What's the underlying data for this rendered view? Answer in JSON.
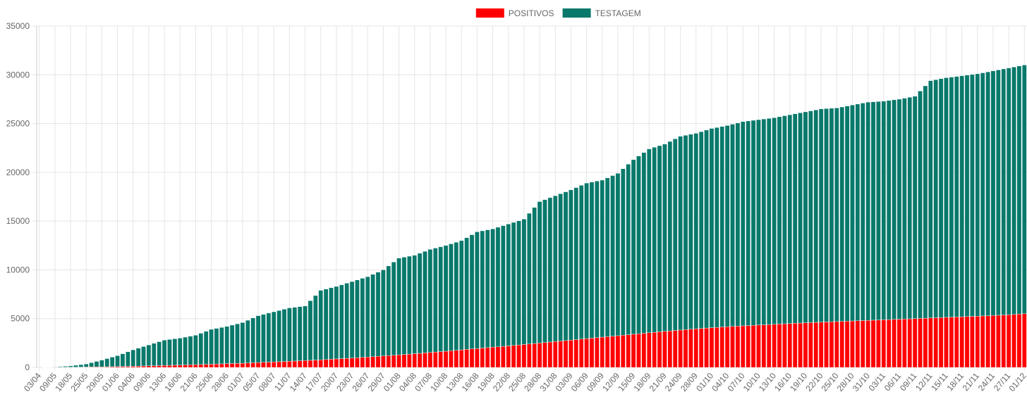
{
  "chart_data": {
    "type": "bar",
    "stacked": true,
    "grid": true,
    "legend": "top",
    "categories": [
      "03/04",
      null,
      null,
      "09/05",
      null,
      null,
      "18/05",
      null,
      null,
      "25/05",
      null,
      null,
      "29/05",
      null,
      null,
      "01/06",
      null,
      null,
      "04/06",
      null,
      null,
      "09/06",
      null,
      null,
      "13/06",
      null,
      null,
      "16/06",
      null,
      null,
      "21/06",
      null,
      null,
      "25/06",
      null,
      null,
      "28/06",
      null,
      null,
      "01/07",
      null,
      null,
      "05/07",
      null,
      null,
      "08/07",
      null,
      null,
      "11/07",
      null,
      null,
      "14/07",
      null,
      null,
      "17/07",
      null,
      null,
      "20/07",
      null,
      null,
      "23/07",
      null,
      null,
      "26/07",
      null,
      null,
      "29/07",
      null,
      null,
      "01/08",
      null,
      null,
      "04/08",
      null,
      null,
      "07/08",
      null,
      null,
      "10/08",
      null,
      null,
      "13/08",
      null,
      null,
      "16/08",
      null,
      null,
      "19/08",
      null,
      null,
      "22/08",
      null,
      null,
      "25/08",
      null,
      null,
      "28/08",
      null,
      null,
      "31/08",
      null,
      null,
      "03/09",
      null,
      null,
      "06/09",
      null,
      null,
      "09/09",
      null,
      null,
      "12/09",
      null,
      null,
      "15/09",
      null,
      null,
      "18/09",
      null,
      null,
      "21/09",
      null,
      null,
      "24/09",
      null,
      null,
      "28/09",
      null,
      null,
      "01/10",
      null,
      null,
      "04/10",
      null,
      null,
      "07/10",
      null,
      null,
      "10/10",
      null,
      null,
      "13/10",
      null,
      null,
      "16/10",
      null,
      null,
      "19/10",
      null,
      null,
      "22/10",
      null,
      null,
      "25/10",
      null,
      null,
      "28/10",
      null,
      null,
      "31/10",
      null,
      null,
      "03/11",
      null,
      null,
      "06/11",
      null,
      null,
      "09/11",
      null,
      null,
      "12/11",
      null,
      null,
      "15/11",
      null,
      null,
      "18/11",
      null,
      null,
      "21/11",
      null,
      null,
      "24/11",
      null,
      null,
      "27/11",
      null,
      null,
      "01/12"
    ],
    "series": [
      {
        "name": "POSITIVOS",
        "color": "#ff0000",
        "values": [
          0,
          3,
          7,
          10,
          13,
          17,
          20,
          27,
          33,
          40,
          47,
          53,
          60,
          70,
          80,
          90,
          100,
          110,
          120,
          133,
          147,
          160,
          173,
          187,
          200,
          213,
          227,
          240,
          253,
          267,
          280,
          297,
          313,
          330,
          347,
          363,
          380,
          397,
          413,
          430,
          453,
          477,
          500,
          520,
          540,
          560,
          583,
          607,
          630,
          653,
          677,
          700,
          727,
          753,
          780,
          810,
          840,
          870,
          900,
          930,
          960,
          993,
          1027,
          1060,
          1097,
          1133,
          1170,
          1210,
          1250,
          1290,
          1327,
          1363,
          1400,
          1443,
          1487,
          1530,
          1573,
          1617,
          1660,
          1707,
          1753,
          1800,
          1847,
          1893,
          1940,
          1983,
          2027,
          2070,
          2113,
          2157,
          2200,
          2250,
          2300,
          2350,
          2400,
          2450,
          2500,
          2550,
          2600,
          2650,
          2700,
          2750,
          2800,
          2850,
          2900,
          2950,
          3000,
          3050,
          3100,
          3150,
          3200,
          3250,
          3300,
          3350,
          3400,
          3450,
          3500,
          3550,
          3600,
          3650,
          3700,
          3743,
          3787,
          3830,
          3873,
          3917,
          3960,
          3997,
          4033,
          4070,
          4103,
          4137,
          4170,
          4200,
          4230,
          4260,
          4287,
          4313,
          4340,
          4367,
          4393,
          4420,
          4447,
          4473,
          4500,
          4523,
          4547,
          4570,
          4593,
          4617,
          4640,
          4660,
          4680,
          4700,
          4720,
          4740,
          4760,
          4780,
          4800,
          4820,
          4840,
          4860,
          4880,
          4900,
          4920,
          4940,
          4960,
          4980,
          5000,
          5023,
          5047,
          5070,
          5090,
          5110,
          5130,
          5150,
          5170,
          5190,
          5210,
          5230,
          5250,
          5273,
          5297,
          5320,
          5347,
          5373,
          5400,
          5433,
          5467,
          5500
        ]
      },
      {
        "name": "TESTAGEM",
        "color": "#08796b",
        "values": [
          0,
          13,
          27,
          40,
          70,
          100,
          130,
          190,
          250,
          310,
          437,
          563,
          690,
          830,
          970,
          1110,
          1300,
          1490,
          1680,
          1833,
          1987,
          2140,
          2293,
          2447,
          2600,
          2653,
          2707,
          2760,
          2847,
          2933,
          3020,
          3203,
          3387,
          3570,
          3653,
          3737,
          3820,
          3937,
          4053,
          4170,
          4380,
          4590,
          4800,
          4913,
          5027,
          5140,
          5250,
          5360,
          5470,
          5513,
          5557,
          5600,
          6107,
          6613,
          7120,
          7223,
          7327,
          7430,
          7567,
          7703,
          7840,
          7973,
          8107,
          8240,
          8437,
          8633,
          8830,
          9190,
          9550,
          9910,
          9973,
          10037,
          10100,
          10257,
          10413,
          10570,
          10660,
          10750,
          10840,
          10960,
          11080,
          11200,
          11453,
          11707,
          11960,
          12017,
          12073,
          12130,
          12253,
          12377,
          12500,
          12617,
          12733,
          12850,
          13400,
          13950,
          14500,
          14650,
          14800,
          14950,
          15100,
          15250,
          15400,
          15583,
          15767,
          15950,
          16000,
          16050,
          16100,
          16283,
          16467,
          16650,
          17067,
          17483,
          17900,
          18217,
          18533,
          18850,
          18967,
          19083,
          19200,
          19423,
          19647,
          19870,
          19927,
          19983,
          20040,
          20170,
          20300,
          20430,
          20497,
          20563,
          20630,
          20733,
          20837,
          20940,
          20980,
          21020,
          21060,
          21100,
          21140,
          21180,
          21253,
          21327,
          21400,
          21477,
          21553,
          21630,
          21707,
          21783,
          21860,
          21873,
          21887,
          21900,
          21980,
          22060,
          22140,
          22220,
          22300,
          22380,
          22393,
          22407,
          22420,
          22467,
          22513,
          22560,
          22640,
          22720,
          22800,
          23310,
          23820,
          24330,
          24410,
          24490,
          24570,
          24617,
          24663,
          24710,
          24757,
          24803,
          24850,
          24927,
          25003,
          25080,
          25153,
          25227,
          25300,
          25367,
          25433,
          25500
        ]
      }
    ],
    "ylim": [
      0,
      35000
    ],
    "yticks": [
      0,
      5000,
      10000,
      15000,
      20000,
      25000,
      30000,
      35000
    ]
  }
}
